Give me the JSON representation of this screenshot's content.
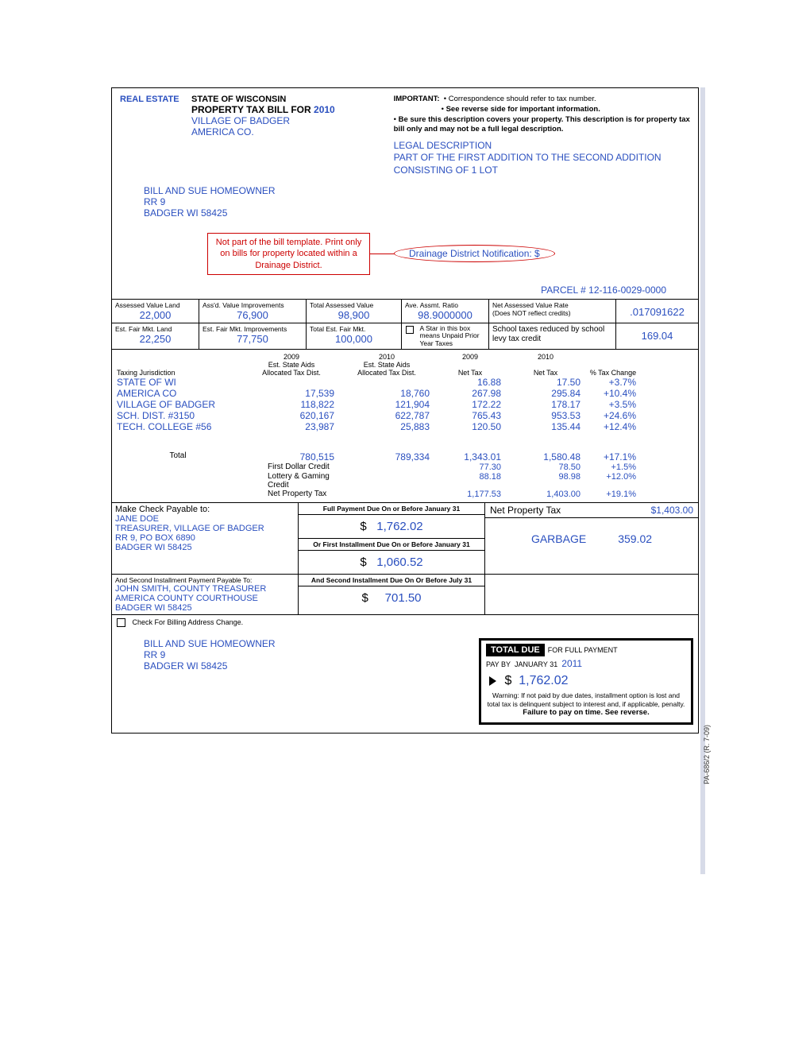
{
  "colors": {
    "blue": "#2a4fbf",
    "red": "#c00",
    "black": "#000",
    "shade": "#d7dbe8"
  },
  "form_code": "PA-686/2 (R. 7-09)",
  "header": {
    "state": "STATE OF WISCONSIN",
    "re_label": "REAL ESTATE",
    "bill_for": "PROPERTY TAX BILL FOR",
    "year": "2010",
    "municipality": "VILLAGE OF BADGER",
    "county": "AMERICA CO.",
    "important_label": "IMPORTANT:",
    "important_1": "Correspondence should refer to tax number.",
    "important_2": "See reverse side for important information.",
    "important_3": "Be sure this description covers your property. This description is for property tax bill only and may not be a full legal description.",
    "legal_title": "LEGAL DESCRIPTION",
    "legal_body": "PART OF THE FIRST ADDITION TO THE SECOND ADDITION CONSISTING OF 1 LOT"
  },
  "owner": {
    "name": "BILL AND SUE HOMEOWNER",
    "addr1": "RR 9",
    "addr2": "BADGER WI  58425"
  },
  "note": {
    "text": "Not part of the bill template. Print only on bills for property located within a Drainage District.",
    "bubble": "Drainage District Notification:   $"
  },
  "parcel": {
    "label": "PARCEL #",
    "value": "12-116-0029-0000"
  },
  "assess": {
    "h_land": "Assessed Value Land",
    "h_imp": "Ass'd. Value Improvements",
    "h_tot": "Total Assessed Value",
    "h_ratio": "Ave. Assmt. Ratio",
    "land": "22,000",
    "imp": "76,900",
    "tot": "98,900",
    "ratio": "98.9000000",
    "rate_lbl1": "Net Assessed Value Rate",
    "rate_lbl2": "(Does NOT reflect credits)",
    "rate": ".017091622"
  },
  "fair": {
    "h_land": "Est. Fair Mkt. Land",
    "h_imp": "Est. Fair Mkt. Improvements",
    "h_tot": "Total Est. Fair Mkt.",
    "land": "22,250",
    "imp": "77,750",
    "tot": "100,000",
    "star": "A Star in this box means Unpaid Prior Year Taxes",
    "sch_lbl": "School taxes reduced by school levy tax credit",
    "sch_val": "169.04"
  },
  "tax_table": {
    "h_jur": "Taxing Jurisdiction",
    "h_2009a": "2009",
    "h_2009b": "Est. State Aids",
    "h_2009c": "Allocated Tax Dist.",
    "h_2010a": "2010",
    "h_2010b": "Est. State Aids",
    "h_2010c": "Allocated Tax Dist.",
    "h_nt09": "2009",
    "h_nt09b": "Net Tax",
    "h_nt10": "2010",
    "h_nt10b": "Net Tax",
    "h_pct": "% Tax Change",
    "rows": [
      {
        "j": "STATE OF WI",
        "a09": "",
        "a10": "",
        "n09": "16.88",
        "n10": "17.50",
        "pct": "+3.7%"
      },
      {
        "j": "AMERICA CO",
        "a09": "17,539",
        "a10": "18,760",
        "n09": "267.98",
        "n10": "295.84",
        "pct": "+10.4%"
      },
      {
        "j": "VILLAGE OF BADGER",
        "a09": "118,822",
        "a10": "121,904",
        "n09": "172.22",
        "n10": "178.17",
        "pct": "+3.5%"
      },
      {
        "j": "SCH. DIST. #3150",
        "a09": "620,167",
        "a10": "622,787",
        "n09": "765.43",
        "n10": "953.53",
        "pct": "+24.6%"
      },
      {
        "j": "TECH. COLLEGE #56",
        "a09": "23,987",
        "a10": "25,883",
        "n09": "120.50",
        "n10": "135.44",
        "pct": "+12.4%"
      }
    ],
    "total_lbl": "Total",
    "total": {
      "a09": "780,515",
      "a10": "789,334",
      "n09": "1,343.01",
      "n10": "1,580.48",
      "pct": "+17.1%"
    },
    "credits": [
      {
        "lbl": "First Dollar Credit",
        "n09": "77.30",
        "n10": "78.50",
        "pct": "+1.5%"
      },
      {
        "lbl": "Lottery & Gaming Credit",
        "n09": "88.18",
        "n10": "98.98",
        "pct": "+12.0%"
      },
      {
        "lbl": "Net Property Tax",
        "n09": "1,177.53",
        "n10": "1,403.00",
        "pct": "+19.1%"
      }
    ]
  },
  "payment": {
    "payable_lbl": "Make Check Payable to:",
    "payee1_name": "JANE DOE",
    "payee1_l2": "TREASURER, VILLAGE OF BADGER",
    "payee1_l3": "RR 9, PO BOX 6890",
    "payee1_l4": "BADGER WI  58425",
    "sec2_lbl": "And Second Installment Payment Payable To:",
    "payee2_l1": "JOHN SMITH, COUNTY TREASURER",
    "payee2_l2": "AMERICA COUNTY COURTHOUSE",
    "payee2_l3": "BADGER WI  58425",
    "full_h": "Full Payment Due On or Before January 31",
    "full_v": "1,762.02",
    "inst1_h": "Or First Installment Due On or Before January 31",
    "inst1_v": "1,060.52",
    "inst2_h": "And Second Installment Due On Or Before July 31",
    "inst2_v": "701.50",
    "npt_lbl": "Net Property Tax",
    "npt_val": "$1,403.00",
    "garbage_lbl": "GARBAGE",
    "garbage_val": "359.02"
  },
  "addr_change": "Check For Billing Address Change.",
  "stub": {
    "name": "BILL AND SUE HOMEOWNER",
    "addr1": "RR 9",
    "addr2": "BADGER WI  58425"
  },
  "totalbox": {
    "title": "TOTAL DUE",
    "for": "FOR FULL PAYMENT",
    "payby_lbl": "PAY BY",
    "payby_date": "JANUARY 31",
    "payby_year": "2011",
    "amount": "1,762.02",
    "warn1": "Warning:  If not paid by due dates, installment option is lost and total tax is delinquent subject to interest and, if applicable, penalty.",
    "warn2": "Failure to pay on time. See reverse."
  }
}
